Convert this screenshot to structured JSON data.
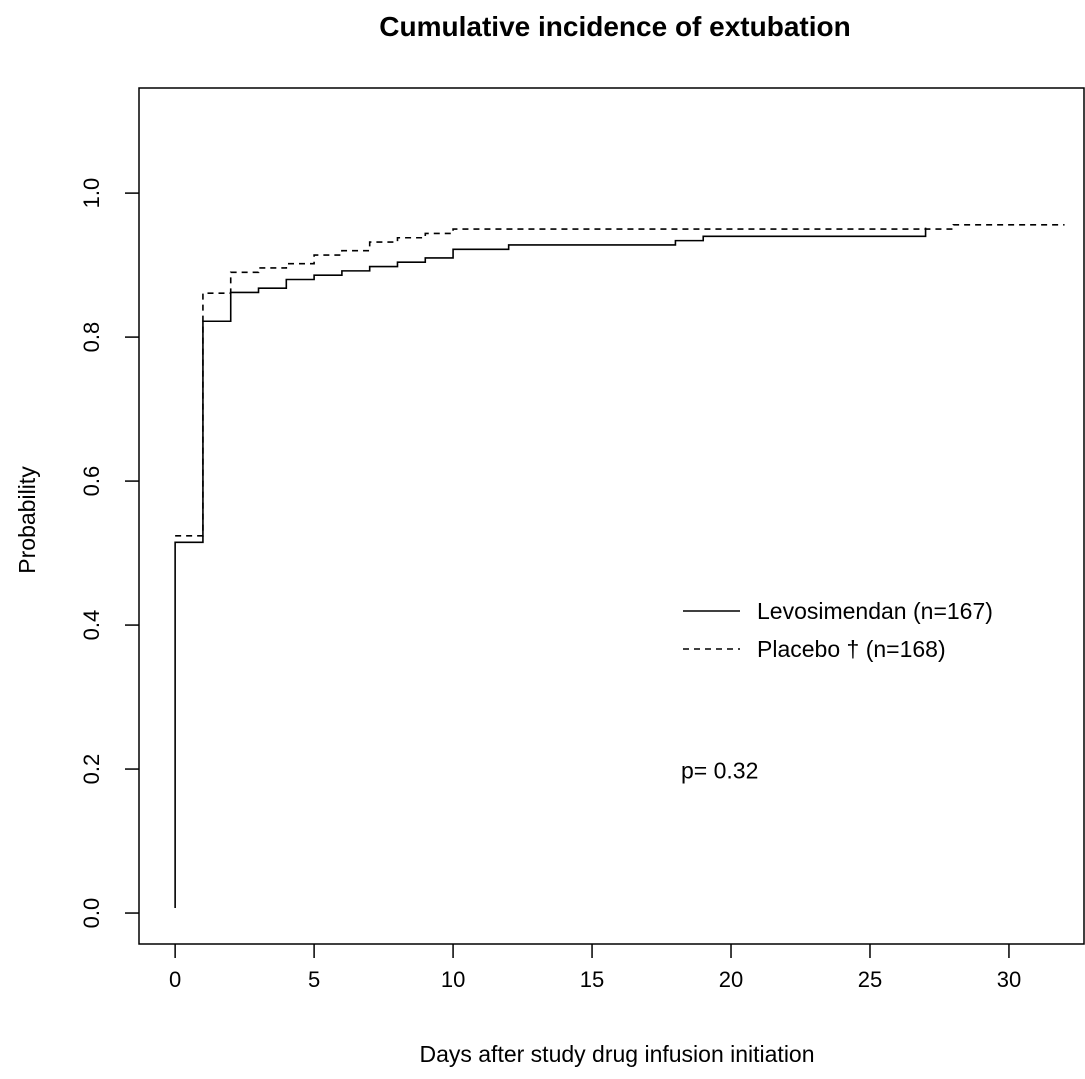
{
  "chart_data": {
    "type": "line",
    "step": true,
    "title": "Cumulative incidence of extubation",
    "xlabel": "Days after study drug infusion initiation",
    "ylabel": "Probability",
    "xlim": [
      -1.3,
      32.7
    ],
    "ylim": [
      -0.043,
      1.146
    ],
    "xticks": [
      0,
      5,
      10,
      15,
      20,
      25,
      30
    ],
    "yticks": [
      0.0,
      0.2,
      0.4,
      0.6,
      0.8,
      1.0
    ],
    "xtick_labels": [
      "0",
      "5",
      "10",
      "15",
      "20",
      "25",
      "30"
    ],
    "ytick_labels": [
      "0.0",
      "0.2",
      "0.4",
      "0.6",
      "0.8",
      "1.0"
    ],
    "grid": false,
    "legend_position": "right",
    "series": [
      {
        "name": "Levosimendan (n=167)",
        "line_style": "solid",
        "color": "#000000",
        "x": [
          0,
          0,
          1,
          2,
          3,
          4,
          5,
          6,
          7,
          8,
          9,
          10,
          12,
          18,
          19,
          27,
          27
        ],
        "y": [
          0.007,
          0.515,
          0.822,
          0.862,
          0.868,
          0.88,
          0.886,
          0.892,
          0.898,
          0.904,
          0.91,
          0.922,
          0.928,
          0.934,
          0.94,
          0.94,
          0.952
        ]
      },
      {
        "name": "Placebo † (n=168)",
        "line_style": "dashed",
        "color": "#000000",
        "x": [
          0,
          1,
          2,
          3,
          4,
          5,
          6,
          7,
          8,
          9,
          10,
          28,
          32
        ],
        "y": [
          0.524,
          0.861,
          0.89,
          0.896,
          0.902,
          0.914,
          0.92,
          0.932,
          0.938,
          0.944,
          0.95,
          0.956,
          0.956
        ]
      }
    ],
    "annotations": [
      {
        "text": "p= 0.32",
        "x": 18.2,
        "y": 0.198
      }
    ]
  }
}
